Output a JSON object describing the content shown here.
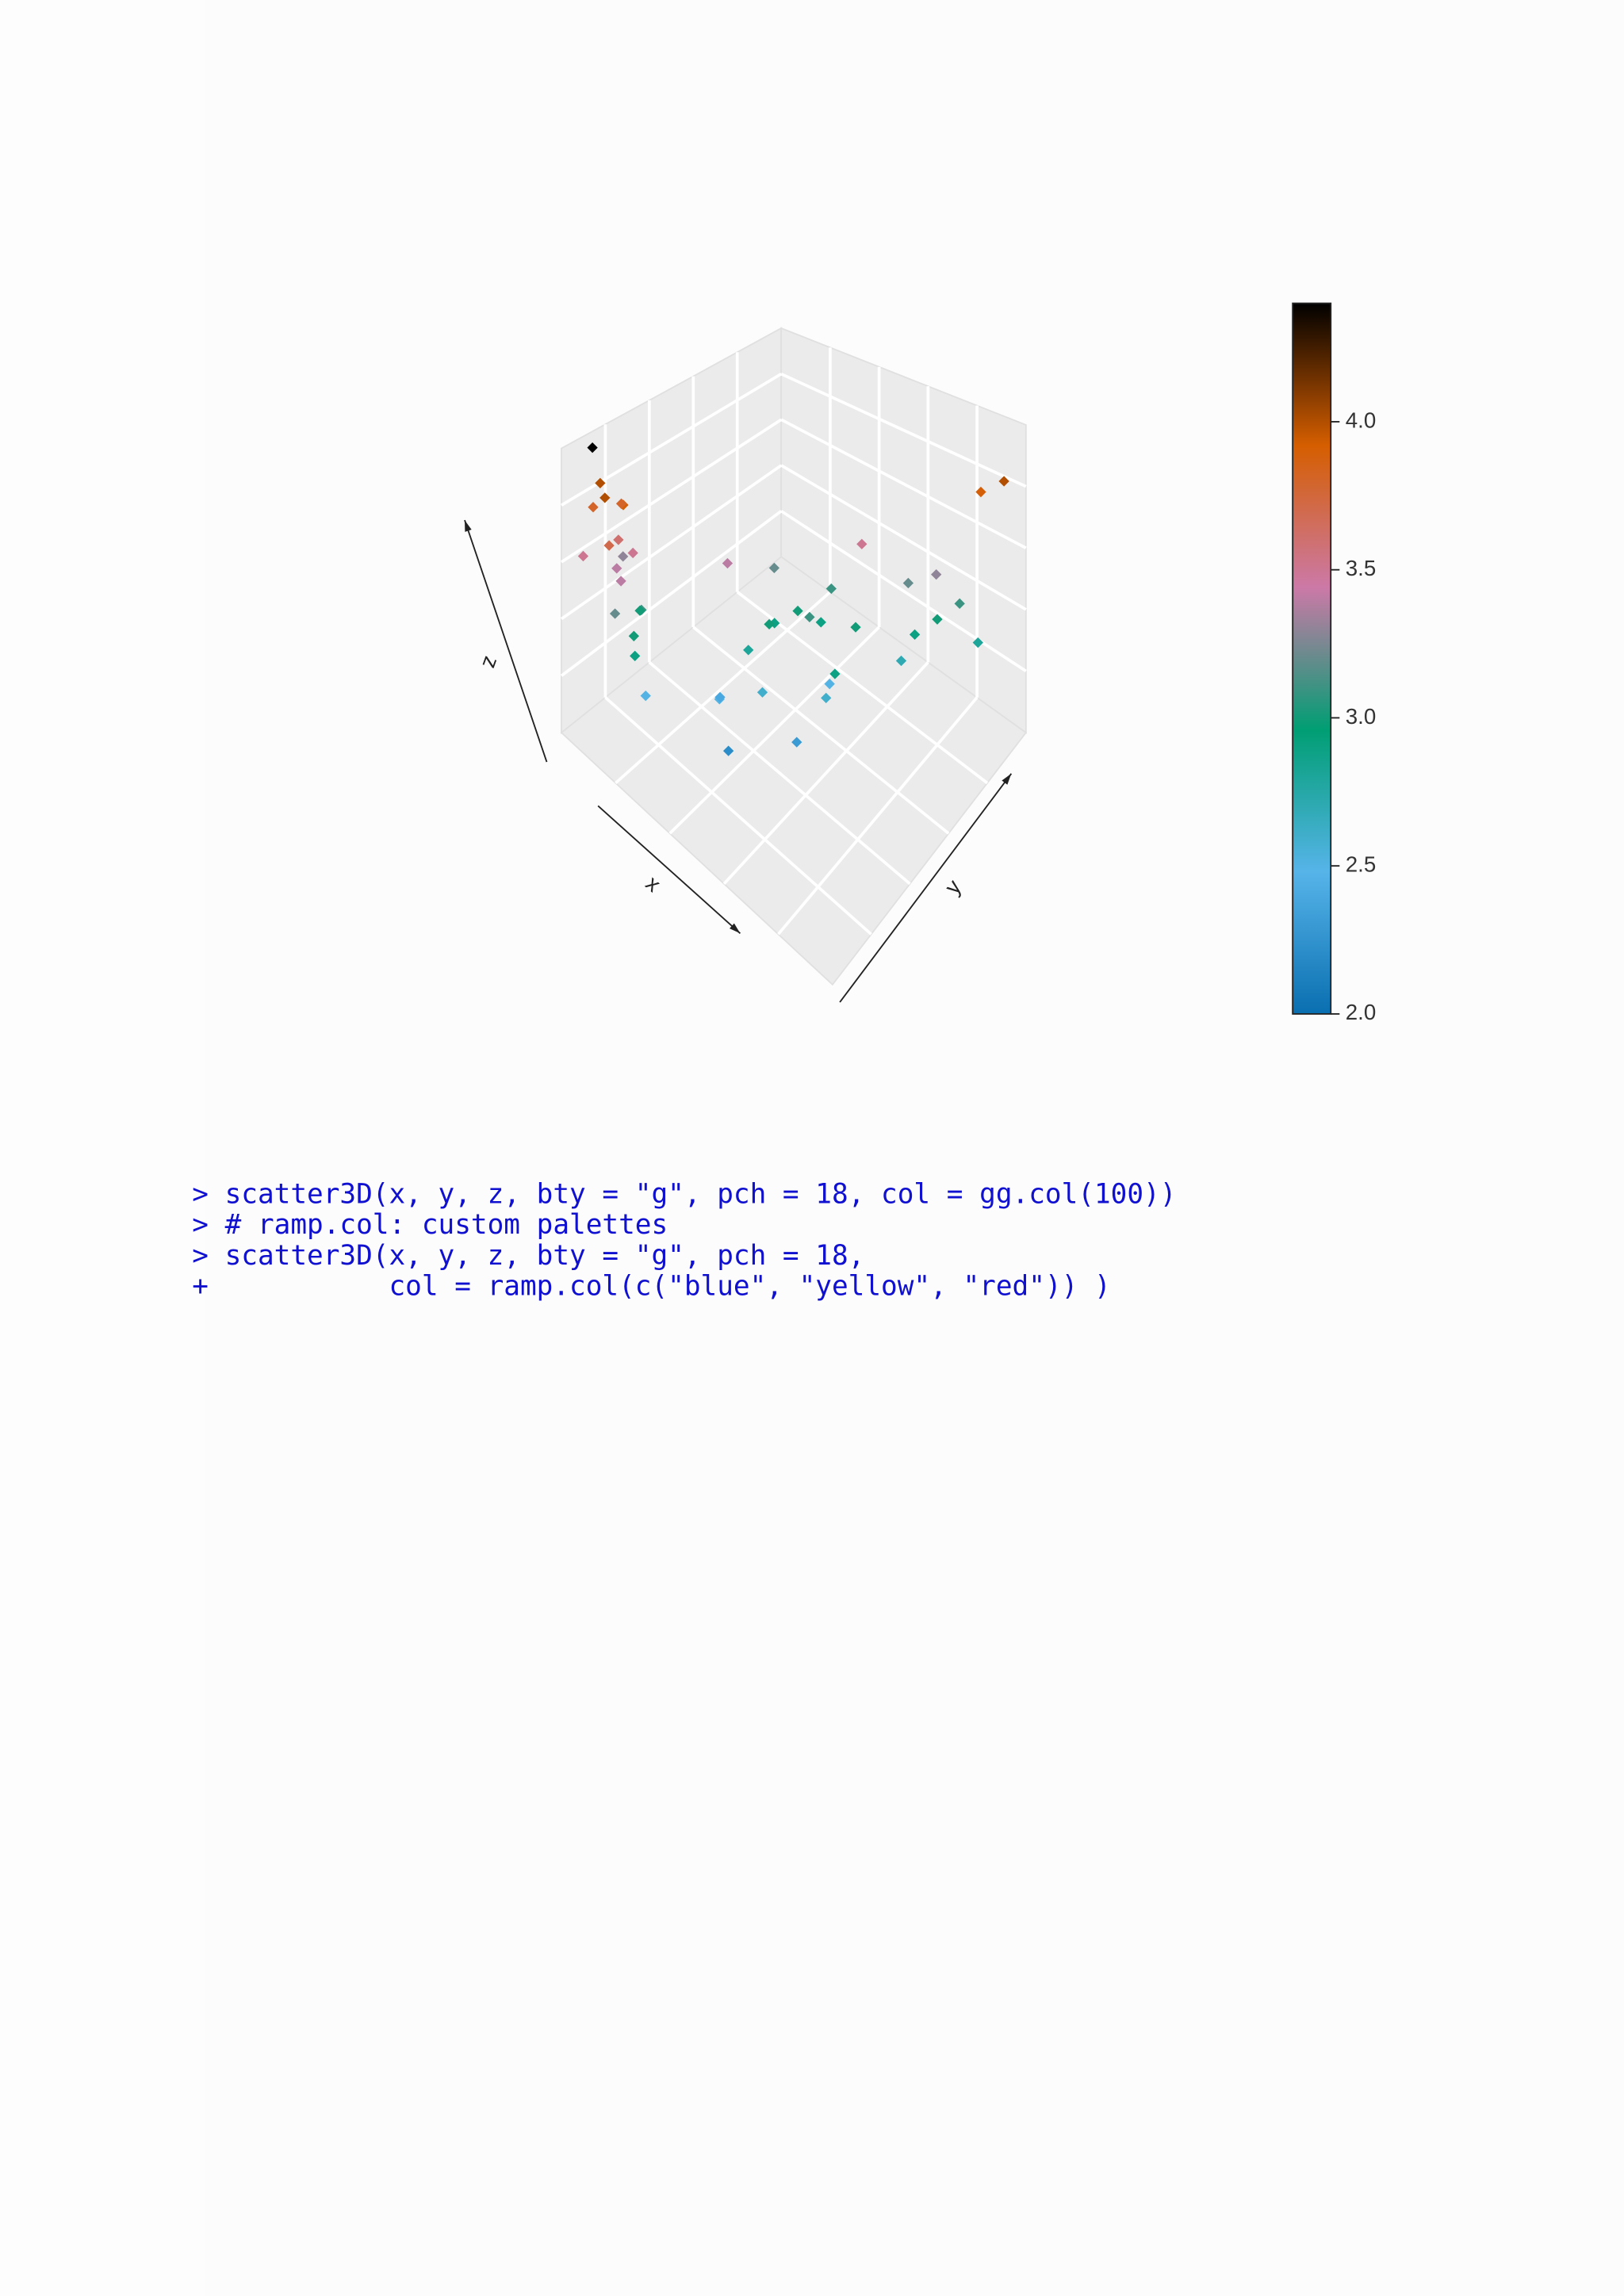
{
  "chart_data": {
    "type": "scatter3d",
    "x_label": "x",
    "y_label": "y",
    "z_label": "z",
    "xlim": [
      0,
      1
    ],
    "ylim": [
      0,
      1
    ],
    "zlim": [
      2.0,
      4.4
    ],
    "x": [
      0.92,
      0.86,
      0.9,
      0.84,
      0.88,
      0.8,
      0.93,
      0.85,
      0.95,
      0.82,
      0.9,
      0.87,
      0.78,
      0.94,
      0.83,
      0.89,
      0.8,
      0.91,
      0.86,
      0.5,
      0.45,
      0.55,
      0.4,
      0.48,
      0.6,
      0.62,
      0.7,
      0.66,
      0.58,
      0.72,
      0.5,
      0.42,
      0.38,
      0.35,
      0.52,
      0.44,
      0.6,
      0.3,
      0.2,
      0.25,
      0.15,
      0.22,
      0.12,
      0.28,
      0.08,
      0.05,
      0.18
    ],
    "y": [
      0.05,
      0.03,
      0.08,
      0.1,
      0.02,
      0.06,
      0.12,
      0.09,
      0.04,
      0.12,
      0.14,
      0.1,
      0.05,
      0.15,
      0.16,
      0.18,
      0.13,
      0.2,
      0.2,
      0.4,
      0.45,
      0.42,
      0.5,
      0.52,
      0.38,
      0.45,
      0.35,
      0.32,
      0.55,
      0.4,
      0.6,
      0.55,
      0.62,
      0.5,
      0.65,
      0.35,
      0.3,
      0.58,
      0.8,
      0.75,
      0.85,
      0.7,
      0.9,
      0.72,
      0.88,
      0.95,
      0.78
    ],
    "z": [
      4.4,
      4.0,
      4.0,
      3.9,
      3.8,
      3.8,
      3.7,
      3.6,
      3.5,
      3.5,
      3.4,
      3.4,
      3.3,
      3.2,
      3.1,
      3.0,
      3.0,
      2.9,
      2.5,
      2.9,
      3.0,
      3.0,
      2.9,
      3.1,
      2.8,
      2.6,
      2.5,
      2.4,
      2.3,
      2.2,
      2.6,
      2.5,
      3.0,
      3.1,
      2.9,
      3.2,
      3.4,
      3.5,
      3.0,
      2.9,
      3.1,
      3.2,
      2.8,
      2.7,
      3.9,
      4.0,
      3.3
    ],
    "colorbar": {
      "colors": [
        "#0a6fb0",
        "#56b4e9",
        "#009e73",
        "#cc79a7",
        "#d55e00",
        "#000000"
      ],
      "ticks": [
        {
          "value": 2.0,
          "label": "2.0"
        },
        {
          "value": 2.5,
          "label": "2.5"
        },
        {
          "value": 3.0,
          "label": "3.0"
        },
        {
          "value": 3.5,
          "label": "3.5"
        },
        {
          "value": 4.0,
          "label": "4.0"
        }
      ]
    }
  },
  "code": {
    "lines": [
      "> scatter3D(x, y, z, bty = \"g\", pch = 18, col = gg.col(100))",
      "> # ramp.col: custom palettes",
      "> scatter3D(x, y, z, bty = \"g\", pch = 18,",
      "+           col = ramp.col(c(\"blue\", \"yellow\", \"red\")) )"
    ]
  }
}
